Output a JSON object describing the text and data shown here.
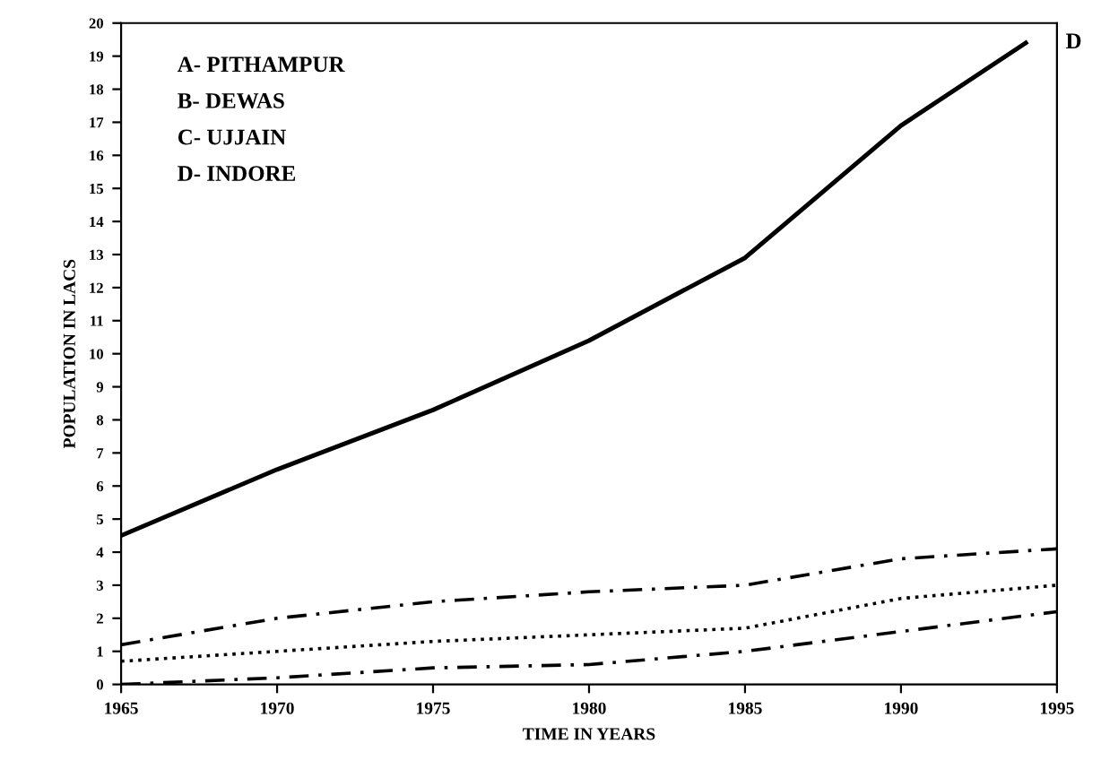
{
  "chart_data": {
    "type": "line",
    "xlabel": "TIME IN YEARS",
    "ylabel": "POPULATION IN LACS",
    "annotations": [
      "A- PITHAMPUR",
      "B- DEWAS",
      "C- UJJAIN",
      "D- INDORE",
      {
        "text": "D",
        "x": 1994,
        "y": 19.4
      }
    ],
    "series": [
      {
        "color": "#000000",
        "line_style": "solid",
        "x": [
          1965,
          1970,
          1975,
          1980,
          1985,
          1990,
          1994
        ],
        "values": [
          4.5,
          6.5,
          8.3,
          10.4,
          12.9,
          16.9,
          19.4
        ]
      },
      {
        "color": "#000000",
        "line_style": "dashed",
        "x": [
          1965,
          1970,
          1975,
          1980,
          1985,
          1990,
          1995
        ],
        "values": [
          1.2,
          2.0,
          2.5,
          2.8,
          3.0,
          3.8,
          4.1
        ]
      },
      {
        "color": "#000000",
        "line_style": "dotted",
        "x": [
          1965,
          1970,
          1975,
          1980,
          1985,
          1990,
          1995
        ],
        "values": [
          0.7,
          1.0,
          1.3,
          1.5,
          1.7,
          2.6,
          3.0
        ]
      },
      {
        "color": "#000000",
        "line_style": "dashed",
        "x": [
          1965,
          1970,
          1975,
          1980,
          1985,
          1990,
          1995
        ],
        "values": [
          0.0,
          0.2,
          0.5,
          0.6,
          1.0,
          1.6,
          2.2
        ]
      }
    ],
    "xlim": [
      1965,
      1995
    ],
    "xticks": [
      1965,
      1970,
      1975,
      1980,
      1985,
      1990,
      1995
    ],
    "ylim": [
      0,
      20
    ],
    "yticks": [
      0,
      1,
      2,
      3,
      4,
      5,
      6,
      7,
      8,
      9,
      10,
      11,
      12,
      13,
      14,
      15,
      16,
      17,
      18,
      19,
      20
    ],
    "grid": false,
    "legend": false,
    "marker": "none"
  }
}
